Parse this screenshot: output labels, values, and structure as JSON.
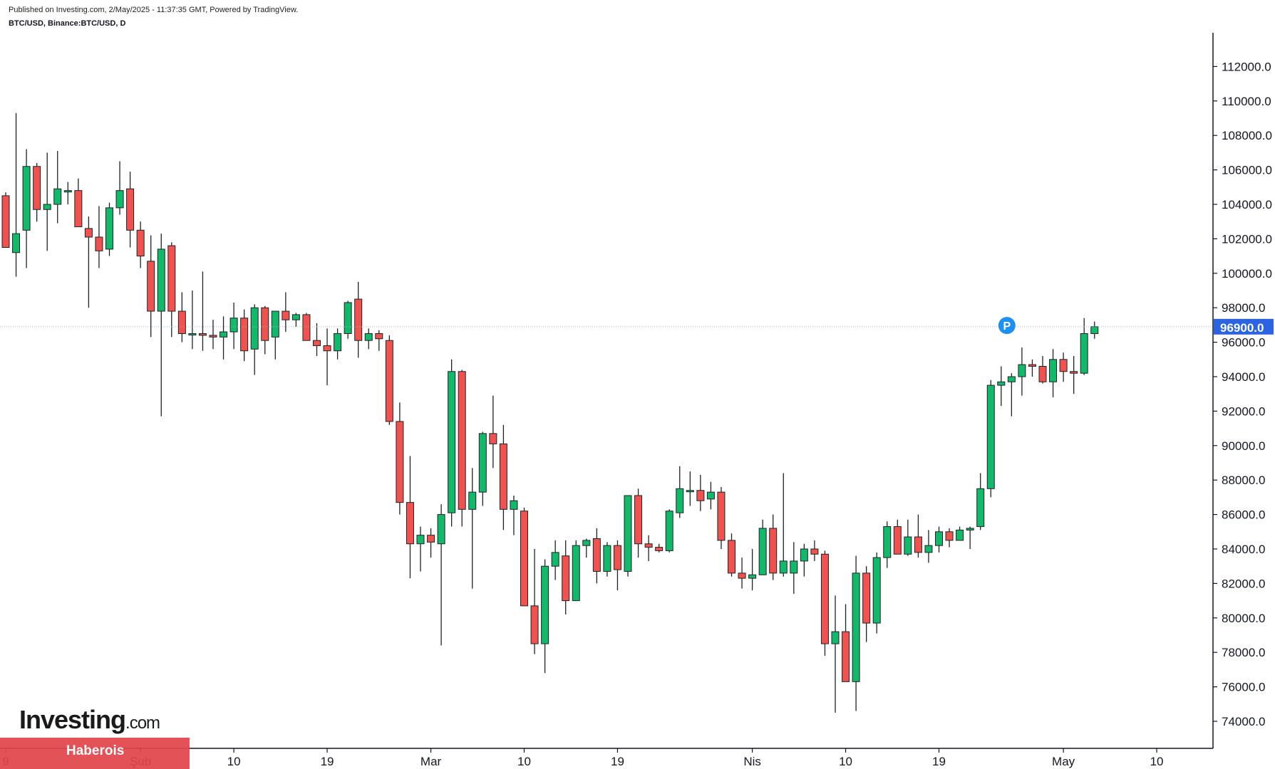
{
  "header": {
    "published_line": "Published on Investing.com, 2/May/2025 - 11:37:35 GMT, Powered by TradingView.",
    "symbol_line": "BTC/USD, Binance:BTC/USD, D"
  },
  "branding": {
    "logo_main": "Investing",
    "logo_domain": ".com",
    "watermark": "Haberois"
  },
  "colors": {
    "up": "#14b86a",
    "down": "#ef5350",
    "axis": "#131722",
    "price_line": "#9fb6cf",
    "price_tag": "#2b63e0",
    "marker": "#1e90f0"
  },
  "chart_data": {
    "type": "candlestick",
    "title": "BTC/USD, Binance:BTC/USD, D",
    "ylim": [
      72900,
      113200
    ],
    "y_ticks": [
      74000,
      76000,
      78000,
      80000,
      82000,
      84000,
      86000,
      88000,
      90000,
      92000,
      94000,
      96000,
      98000,
      100000,
      102000,
      104000,
      106000,
      108000,
      110000,
      112000
    ],
    "y_tick_labels": [
      "74000.0",
      "76000.0",
      "78000.0",
      "80000.0",
      "82000.0",
      "84000.0",
      "86000.0",
      "88000.0",
      "90000.0",
      "92000.0",
      "94000.0",
      "96000.0",
      "98000.0",
      "100000.0",
      "102000.0",
      "104000.0",
      "106000.0",
      "108000.0",
      "110000.0",
      "112000.0"
    ],
    "x_ticks": [
      {
        "label": "9",
        "index": 0
      },
      {
        "label": "Şub",
        "index": 13
      },
      {
        "label": "10",
        "index": 22
      },
      {
        "label": "19",
        "index": 31
      },
      {
        "label": "Mar",
        "index": 41
      },
      {
        "label": "10",
        "index": 50
      },
      {
        "label": "19",
        "index": 59
      },
      {
        "label": "Nis",
        "index": 72
      },
      {
        "label": "10",
        "index": 81
      },
      {
        "label": "19",
        "index": 90
      },
      {
        "label": "May",
        "index": 102
      },
      {
        "label": "10",
        "index": 111
      }
    ],
    "last_price": 96900,
    "last_price_label": "96900.0",
    "marker_label": "P",
    "marker": {
      "index": 96,
      "price": 97300
    },
    "grid": false,
    "ohlc": [
      [
        104500,
        104700,
        101500,
        101500
      ],
      [
        101200,
        109300,
        99800,
        102300
      ],
      [
        102500,
        107200,
        100300,
        106200
      ],
      [
        106200,
        106400,
        103000,
        103700
      ],
      [
        103700,
        107000,
        101300,
        104000
      ],
      [
        104000,
        107100,
        102900,
        104900
      ],
      [
        104800,
        105300,
        104000,
        104800
      ],
      [
        104800,
        105500,
        102700,
        102700
      ],
      [
        102600,
        103300,
        98000,
        102100
      ],
      [
        102100,
        103900,
        100300,
        101300
      ],
      [
        101400,
        104100,
        101000,
        103800
      ],
      [
        103800,
        106500,
        103400,
        104800
      ],
      [
        104900,
        105900,
        101500,
        102500
      ],
      [
        102500,
        103000,
        100300,
        101000
      ],
      [
        100700,
        102200,
        96300,
        97800
      ],
      [
        97800,
        102300,
        91700,
        101400
      ],
      [
        101600,
        101800,
        96300,
        97800
      ],
      [
        97800,
        98900,
        96000,
        96500
      ],
      [
        96500,
        99000,
        95600,
        96500
      ],
      [
        96500,
        100100,
        95500,
        96400
      ],
      [
        96400,
        97300,
        95600,
        96300
      ],
      [
        96300,
        97500,
        95000,
        96600
      ],
      [
        96600,
        98300,
        95600,
        97400
      ],
      [
        97400,
        97900,
        94900,
        95500
      ],
      [
        95600,
        98200,
        94100,
        98000
      ],
      [
        98000,
        98100,
        95300,
        96100
      ],
      [
        96300,
        97800,
        95000,
        97800
      ],
      [
        97800,
        98900,
        96600,
        97300
      ],
      [
        97300,
        97700,
        96900,
        97600
      ],
      [
        97600,
        97700,
        96100,
        96100
      ],
      [
        96100,
        97100,
        95200,
        95800
      ],
      [
        95800,
        96800,
        93500,
        95500
      ],
      [
        95500,
        96800,
        95000,
        96500
      ],
      [
        96500,
        98400,
        96200,
        98300
      ],
      [
        98500,
        99500,
        95100,
        96100
      ],
      [
        96100,
        96800,
        95600,
        96500
      ],
      [
        96500,
        96700,
        95500,
        96200
      ],
      [
        96100,
        96400,
        91200,
        91400
      ],
      [
        91400,
        92500,
        86000,
        86700
      ],
      [
        86700,
        89400,
        82300,
        84300
      ],
      [
        84300,
        85300,
        82700,
        84800
      ],
      [
        84800,
        85200,
        83500,
        84400
      ],
      [
        84300,
        86600,
        78400,
        86000
      ],
      [
        86100,
        95000,
        85300,
        94300
      ],
      [
        94300,
        94400,
        85300,
        86300
      ],
      [
        86300,
        88700,
        81700,
        87300
      ],
      [
        87300,
        90800,
        86500,
        90700
      ],
      [
        90700,
        92900,
        88700,
        90100
      ],
      [
        90100,
        91200,
        85100,
        86300
      ],
      [
        86300,
        87100,
        84800,
        86800
      ],
      [
        86200,
        86400,
        80700,
        80700
      ],
      [
        80700,
        84000,
        77900,
        78500
      ],
      [
        78500,
        83400,
        76800,
        83000
      ],
      [
        83000,
        84500,
        82200,
        83800
      ],
      [
        83600,
        84500,
        80200,
        81000
      ],
      [
        81000,
        84500,
        81000,
        84200
      ],
      [
        84200,
        84600,
        83500,
        84500
      ],
      [
        84600,
        85200,
        82000,
        82700
      ],
      [
        82700,
        84400,
        82400,
        84200
      ],
      [
        84200,
        84500,
        81600,
        82800
      ],
      [
        82700,
        87000,
        82400,
        87100
      ],
      [
        87100,
        87500,
        83500,
        84300
      ],
      [
        84300,
        84800,
        83300,
        84100
      ],
      [
        84100,
        84300,
        83800,
        83900
      ],
      [
        83900,
        86300,
        83800,
        86200
      ],
      [
        86100,
        88800,
        85800,
        87500
      ],
      [
        87400,
        88500,
        86500,
        87400
      ],
      [
        87400,
        88300,
        86200,
        86800
      ],
      [
        86900,
        87900,
        86300,
        87300
      ],
      [
        87300,
        87600,
        84000,
        84500
      ],
      [
        84500,
        84900,
        82400,
        82600
      ],
      [
        82600,
        83500,
        81700,
        82300
      ],
      [
        82300,
        84000,
        81600,
        82500
      ],
      [
        82500,
        85700,
        82500,
        85200
      ],
      [
        85200,
        86000,
        82200,
        82600
      ],
      [
        82600,
        88400,
        82400,
        83300
      ],
      [
        82600,
        84400,
        81400,
        83300
      ],
      [
        83300,
        84300,
        82400,
        84000
      ],
      [
        84000,
        84500,
        83300,
        83700
      ],
      [
        83700,
        83900,
        77800,
        78500
      ],
      [
        78500,
        81300,
        74500,
        79200
      ],
      [
        79200,
        80800,
        76300,
        76300
      ],
      [
        76300,
        83600,
        74600,
        82600
      ],
      [
        82600,
        83000,
        78600,
        79700
      ],
      [
        79700,
        83800,
        79100,
        83500
      ],
      [
        83500,
        85600,
        82900,
        85300
      ],
      [
        85300,
        85700,
        83800,
        83700
      ],
      [
        83700,
        85700,
        83600,
        84700
      ],
      [
        84700,
        86000,
        83500,
        83800
      ],
      [
        83800,
        85100,
        83200,
        84200
      ],
      [
        84200,
        85300,
        83800,
        85000
      ],
      [
        85000,
        85200,
        84100,
        84500
      ],
      [
        84500,
        85300,
        84500,
        85100
      ],
      [
        85100,
        85300,
        84000,
        85200
      ],
      [
        85300,
        88400,
        85100,
        87500
      ],
      [
        87500,
        93800,
        87000,
        93500
      ],
      [
        93500,
        94600,
        92300,
        93700
      ],
      [
        93700,
        94200,
        91700,
        94000
      ],
      [
        94000,
        95700,
        92900,
        94700
      ],
      [
        94700,
        95000,
        94000,
        94600
      ],
      [
        94600,
        95200,
        93600,
        93700
      ],
      [
        93700,
        95600,
        92800,
        95000
      ],
      [
        95000,
        95400,
        93700,
        94300
      ],
      [
        94300,
        95200,
        93000,
        94200
      ],
      [
        94200,
        97400,
        94100,
        96500
      ],
      [
        96500,
        97200,
        96200,
        96900
      ]
    ]
  }
}
